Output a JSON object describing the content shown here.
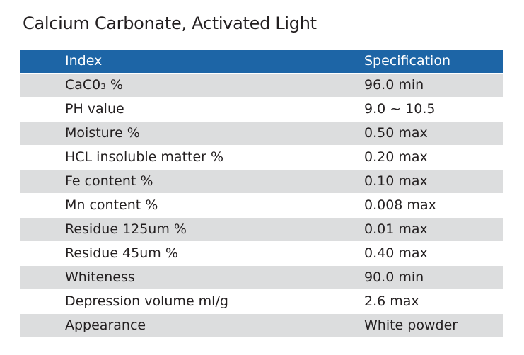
{
  "title": "Calcium Carbonate, Activated Light",
  "table": {
    "headers": {
      "index": "Index",
      "specification": "Specification"
    },
    "rows": [
      {
        "index": "CaC0₃ %",
        "specification": "96.0 min"
      },
      {
        "index": "PH value",
        "specification": "9.0 ~ 10.5"
      },
      {
        "index": "Moisture %",
        "specification": "0.50 max"
      },
      {
        "index": "HCL insoluble matter %",
        "specification": "0.20 max"
      },
      {
        "index": "Fe content %",
        "specification": "0.10 max"
      },
      {
        "index": "Mn content %",
        "specification": "0.008 max"
      },
      {
        "index": "Residue 125um %",
        "specification": "0.01 max"
      },
      {
        "index": "Residue 45um %",
        "specification": "0.40 max"
      },
      {
        "index": "Whiteness",
        "specification": "90.0 min"
      },
      {
        "index": "Depression volume ml/g",
        "specification": "2.6 max"
      },
      {
        "index": "Appearance",
        "specification": "White powder"
      }
    ]
  },
  "colors": {
    "header_background": "#1d65a6",
    "stripe_background": "#dcddde",
    "text": "#231f20"
  }
}
